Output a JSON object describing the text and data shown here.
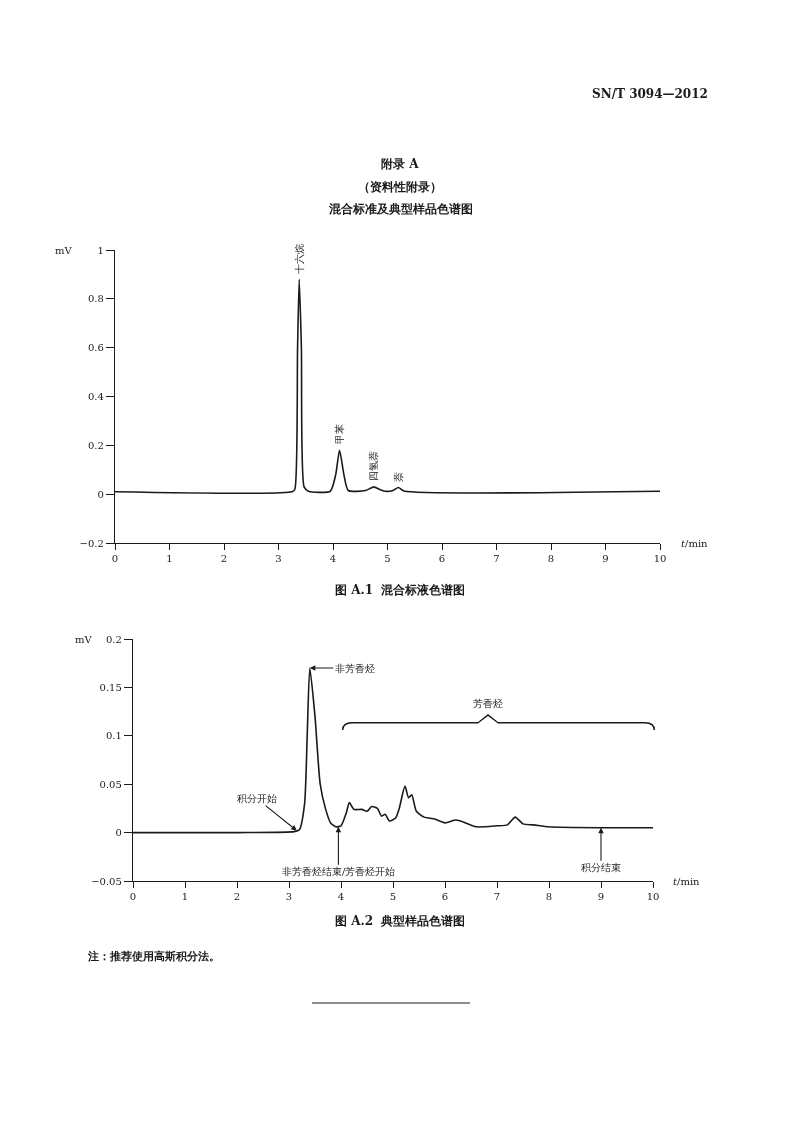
{
  "chart_data": [
    {
      "type": "line",
      "title": "混合标准及典型样品色谱图",
      "ylabel": "mV",
      "xlabel": "t/min",
      "annotations": [
        "SN/T 3094—2012",
        "附录 A",
        "（资料性附录）",
        "图 A.1  混合标液色谱图",
        {
          "text": "十六烷",
          "x": 3.38,
          "y": 0.88
        },
        {
          "text": "甲苯",
          "x": 4.12,
          "y": 0.18
        },
        {
          "text": "四氢萘",
          "x": 4.75,
          "y": 0.03
        },
        {
          "text": "萘",
          "x": 5.2,
          "y": 0.027
        }
      ],
      "xlim": [
        0,
        10
      ],
      "xticks": [
        0,
        1,
        2,
        3,
        4,
        5,
        6,
        7,
        8,
        9,
        10
      ],
      "ylim": [
        -0.2,
        1
      ],
      "yticks": [
        -0.2,
        0,
        0.2,
        0.4,
        0.6,
        0.8,
        1
      ],
      "line_style": "solid",
      "marker": "none",
      "series": [
        {
          "color": "#1a1a1a",
          "x": [
            0,
            3.25,
            3.3,
            3.35,
            3.38,
            3.42,
            3.47,
            3.55,
            3.95,
            4.05,
            4.12,
            4.2,
            4.28,
            4.6,
            4.75,
            4.85,
            4.95,
            5.1,
            5.2,
            5.3,
            10
          ],
          "values": [
            0.01,
            0.01,
            0.02,
            0.6,
            0.88,
            0.6,
            0.03,
            0.012,
            0.012,
            0.08,
            0.18,
            0.08,
            0.015,
            0.015,
            0.03,
            0.02,
            0.012,
            0.015,
            0.027,
            0.013,
            0.012
          ]
        }
      ]
    },
    {
      "type": "line",
      "ylabel": "mV",
      "xlabel": "t/min",
      "annotations": [
        "图 A.2  典型样品色谱图",
        "注：推荐使用高斯积分法。",
        {
          "text": "非芳香烃",
          "x": 3.4,
          "y": 0.17
        },
        {
          "text": "积分开始",
          "x": 3.15,
          "y": 0.002
        },
        {
          "text": "非芳香烃结束/芳香烃开始",
          "x": 3.95,
          "y": 0.006
        },
        {
          "text": "积分结束",
          "x": 9,
          "y": 0.005
        },
        "芳香烃"
      ],
      "xlim": [
        0,
        10
      ],
      "xticks": [
        0,
        1,
        2,
        3,
        4,
        5,
        6,
        7,
        8,
        9,
        10
      ],
      "ylim": [
        -0.05,
        0.2
      ],
      "yticks": [
        -0.05,
        0,
        0.05,
        0.1,
        0.15,
        0.2
      ],
      "line_style": "solid",
      "marker": "none",
      "series": [
        {
          "color": "#1a1a1a",
          "x": [
            0,
            2,
            3.1,
            3.2,
            3.3,
            3.35,
            3.4,
            3.5,
            3.6,
            3.7,
            3.8,
            3.9,
            4.0,
            4.1,
            4.16,
            4.25,
            4.4,
            4.5,
            4.59,
            4.7,
            4.78,
            4.85,
            4.93,
            5.05,
            5.12,
            5.23,
            5.3,
            5.36,
            5.45,
            5.6,
            5.8,
            6.0,
            6.2,
            6.3,
            6.6,
            7.0,
            7.2,
            7.35,
            7.5,
            7.7,
            8.0,
            9,
            10
          ],
          "values": [
            0,
            0,
            0.001,
            0.003,
            0.03,
            0.1,
            0.17,
            0.12,
            0.05,
            0.025,
            0.01,
            0.006,
            0.007,
            0.02,
            0.031,
            0.024,
            0.024,
            0.022,
            0.027,
            0.025,
            0.017,
            0.019,
            0.012,
            0.015,
            0.025,
            0.048,
            0.036,
            0.039,
            0.022,
            0.016,
            0.014,
            0.01,
            0.013,
            0.012,
            0.006,
            0.007,
            0.008,
            0.016,
            0.009,
            0.008,
            0.006,
            0.005,
            0.005
          ]
        }
      ]
    }
  ]
}
